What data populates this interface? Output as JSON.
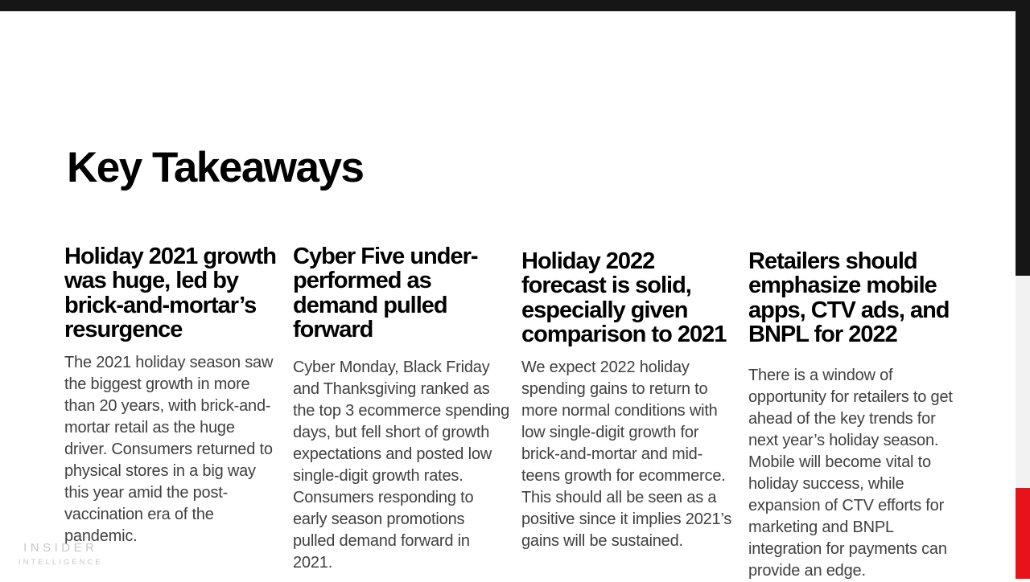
{
  "slide": {
    "title": "Key Takeaways",
    "columns": [
      {
        "heading": "Holiday 2021 growth was huge, led by brick-and-mortar’s resurgence",
        "body": "The 2021 holiday season saw the biggest growth in more than 20 years, with brick-and-mortar retail as the huge driver. Consumers returned to physical stores in a big way this year amid the post-vaccination era of the pandemic."
      },
      {
        "heading": "Cyber Five under-performed as demand pulled forward",
        "body": "Cyber Monday, Black Friday and Thanksgiving ranked as the top 3 ecommerce spending days, but fell short of growth expectations and posted low single-digit growth rates. Consumers responding to early season promotions pulled demand forward in 2021."
      },
      {
        "heading": "Holiday 2022 forecast is solid, especially given comparison to 2021",
        "body": "We expect 2022 holiday spending gains to return to more normal conditions with low single-digit growth for brick-and-mortar and mid-teens growth for ecommerce. This should all be seen as a positive since it implies 2021’s gains will be sustained."
      },
      {
        "heading": "Retailers should emphasize mobile apps, CTV ads, and BNPL for 2022",
        "body": "There is a window of opportunity for retailers to get ahead of the key trends for next year’s holiday season. Mobile will become vital to holiday success, while expansion of CTV efforts for marketing and BNPL integration for payments can provide an edge."
      }
    ],
    "logo": {
      "line1": "INSIDER",
      "line2": "INTELLIGENCE"
    },
    "colors": {
      "bar_black": "#161616",
      "strip_gray": "#f2f2f2",
      "strip_red": "#e8121a",
      "heading_text": "#000000",
      "body_text": "#404040",
      "logo_gray": "#c7c7c7"
    }
  }
}
